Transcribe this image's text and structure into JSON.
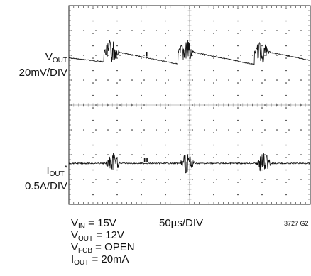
{
  "channels": [
    {
      "label_main": "V",
      "label_sub": "OUT",
      "label_sup": "",
      "scale": "20mV/DIV",
      "marker": "I"
    },
    {
      "label_main": "I",
      "label_sub": "OUT",
      "label_sup": "*",
      "scale": "0.5A/DIV",
      "marker": "II"
    }
  ],
  "conditions": [
    {
      "main": "V",
      "sub": "IN",
      "rest": " = 15V"
    },
    {
      "main": "V",
      "sub": "OUT",
      "rest": " = 12V"
    },
    {
      "main": "V",
      "sub": "FCB",
      "rest": " = OPEN"
    },
    {
      "main": "I",
      "sub": "OUT",
      "rest": " = 20mA"
    }
  ],
  "timebase": "50µs/DIV",
  "figure_id": "3727 G2",
  "colors": {
    "trace": "#111111",
    "grid": "#222222"
  },
  "chart_data": {
    "type": "line",
    "grid": {
      "x_divisions": 10,
      "y_divisions": 8
    },
    "time_per_div_us": 50,
    "transient_burst_times_us": [
      78,
      232,
      390
    ],
    "series": [
      {
        "name": "VOUT",
        "scale": "20mV/DIV",
        "baseline_div_from_top": 2.15,
        "ripple_div": 0.5
      },
      {
        "name": "IOUT",
        "scale": "0.5A/DIV",
        "baseline_div_from_top": 6.35,
        "ripple_div": 0.05
      }
    ]
  }
}
